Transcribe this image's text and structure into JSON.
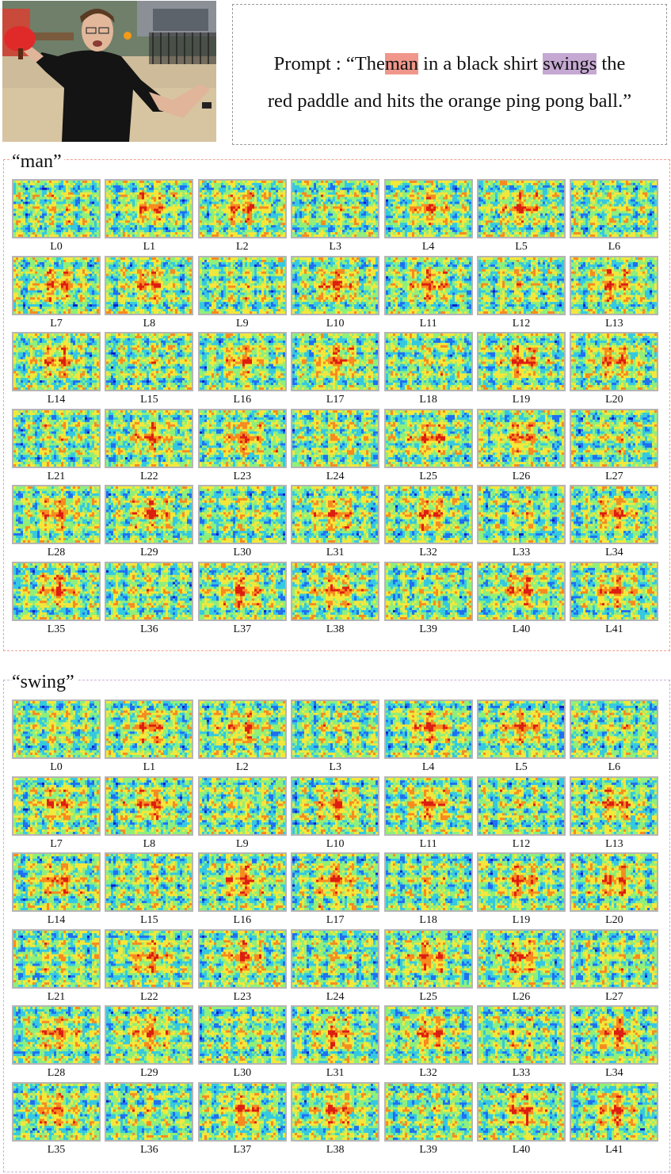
{
  "prompt": {
    "prefix": "Prompt : “The",
    "noun": "man",
    "middle": "in a black shirt",
    "verb": "swings",
    "suffix_line1": "the",
    "line2": "red paddle and hits the orange ping pong ball.”"
  },
  "highlight_colors": {
    "noun": "#f0968a",
    "verb": "#c6a9d3"
  },
  "colormap": [
    "#0a1fc0",
    "#1f6ff0",
    "#35c9e0",
    "#8ff07a",
    "#f4e83a",
    "#f88a1e",
    "#dd1e10"
  ],
  "sections": [
    {
      "label": "“man”",
      "border_color": "#f2a293",
      "layers": [
        "L0",
        "L1",
        "L2",
        "L3",
        "L4",
        "L5",
        "L6",
        "L7",
        "L8",
        "L9",
        "L10",
        "L11",
        "L12",
        "L13",
        "L14",
        "L15",
        "L16",
        "L17",
        "L18",
        "L19",
        "L20",
        "L21",
        "L22",
        "L23",
        "L24",
        "L25",
        "L26",
        "L27",
        "L28",
        "L29",
        "L30",
        "L31",
        "L32",
        "L33",
        "L34",
        "L35",
        "L36",
        "L37",
        "L38",
        "L39",
        "L40",
        "L41"
      ]
    },
    {
      "label": "“swing”",
      "border_color": "#c7b1d6",
      "layers": [
        "L0",
        "L1",
        "L2",
        "L3",
        "L4",
        "L5",
        "L6",
        "L7",
        "L8",
        "L9",
        "L10",
        "L11",
        "L12",
        "L13",
        "L14",
        "L15",
        "L16",
        "L17",
        "L18",
        "L19",
        "L20",
        "L21",
        "L22",
        "L23",
        "L24",
        "L25",
        "L26",
        "L27",
        "L28",
        "L29",
        "L30",
        "L31",
        "L32",
        "L33",
        "L34",
        "L35",
        "L36",
        "L37",
        "L38",
        "L39",
        "L40",
        "L41"
      ]
    }
  ]
}
